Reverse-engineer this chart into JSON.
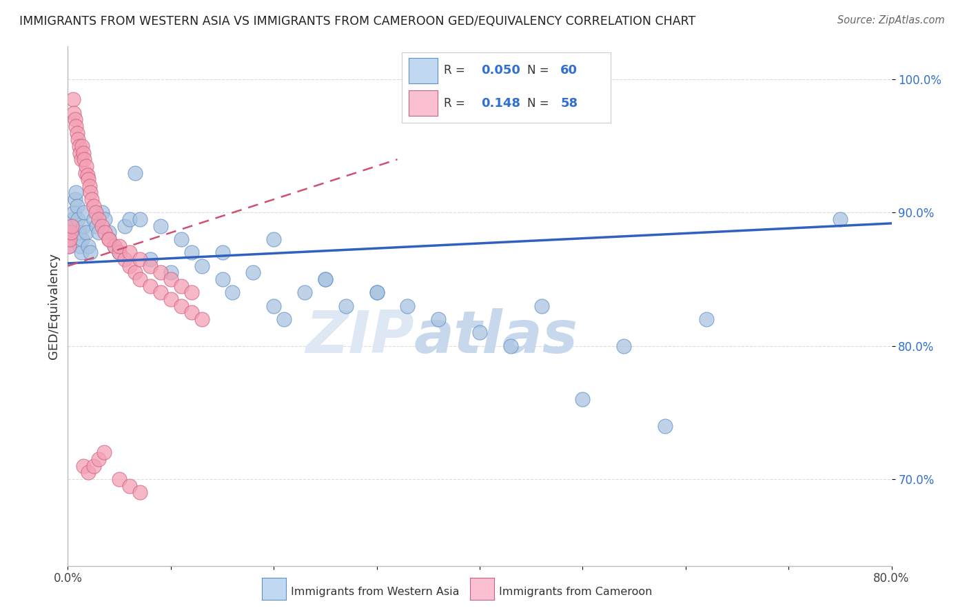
{
  "title": "IMMIGRANTS FROM WESTERN ASIA VS IMMIGRANTS FROM CAMEROON GED/EQUIVALENCY CORRELATION CHART",
  "source": "Source: ZipAtlas.com",
  "xlabel_blue": "Immigrants from Western Asia",
  "xlabel_pink": "Immigrants from Cameroon",
  "ylabel": "GED/Equivalency",
  "R_blue": 0.05,
  "N_blue": 60,
  "R_pink": 0.148,
  "N_pink": 58,
  "color_blue": "#aac4e0",
  "color_pink": "#f4a0b5",
  "edge_blue": "#6090c8",
  "edge_pink": "#d06080",
  "line_blue": "#3060c0",
  "line_pink": "#d05070",
  "xlim": [
    0.0,
    0.8
  ],
  "ylim": [
    0.635,
    1.025
  ],
  "yticks": [
    0.7,
    0.8,
    0.9,
    1.0
  ],
  "xtick_positions": [
    0.0,
    0.1,
    0.2,
    0.3,
    0.4,
    0.5,
    0.6,
    0.7,
    0.8
  ],
  "blue_x": [
    0.001,
    0.002,
    0.003,
    0.004,
    0.005,
    0.006,
    0.007,
    0.008,
    0.009,
    0.01,
    0.011,
    0.012,
    0.013,
    0.014,
    0.015,
    0.016,
    0.018,
    0.02,
    0.022,
    0.025,
    0.028,
    0.03,
    0.033,
    0.036,
    0.04,
    0.045,
    0.05,
    0.055,
    0.06,
    0.065,
    0.07,
    0.08,
    0.09,
    0.1,
    0.11,
    0.12,
    0.13,
    0.15,
    0.16,
    0.18,
    0.2,
    0.21,
    0.23,
    0.25,
    0.27,
    0.3,
    0.33,
    0.36,
    0.4,
    0.43,
    0.46,
    0.5,
    0.54,
    0.58,
    0.62,
    0.15,
    0.2,
    0.25,
    0.3,
    0.75
  ],
  "blue_y": [
    0.875,
    0.88,
    0.885,
    0.89,
    0.895,
    0.9,
    0.91,
    0.915,
    0.905,
    0.895,
    0.885,
    0.875,
    0.87,
    0.88,
    0.89,
    0.9,
    0.885,
    0.875,
    0.87,
    0.895,
    0.89,
    0.885,
    0.9,
    0.895,
    0.885,
    0.875,
    0.87,
    0.89,
    0.895,
    0.93,
    0.895,
    0.865,
    0.89,
    0.855,
    0.88,
    0.87,
    0.86,
    0.85,
    0.84,
    0.855,
    0.83,
    0.82,
    0.84,
    0.85,
    0.83,
    0.84,
    0.83,
    0.82,
    0.81,
    0.8,
    0.83,
    0.76,
    0.8,
    0.74,
    0.82,
    0.87,
    0.88,
    0.85,
    0.84,
    0.895
  ],
  "pink_x": [
    0.001,
    0.002,
    0.003,
    0.004,
    0.005,
    0.006,
    0.007,
    0.008,
    0.009,
    0.01,
    0.011,
    0.012,
    0.013,
    0.014,
    0.015,
    0.016,
    0.017,
    0.018,
    0.019,
    0.02,
    0.021,
    0.022,
    0.023,
    0.025,
    0.027,
    0.03,
    0.033,
    0.036,
    0.04,
    0.045,
    0.05,
    0.055,
    0.06,
    0.065,
    0.07,
    0.08,
    0.09,
    0.1,
    0.11,
    0.12,
    0.13,
    0.04,
    0.05,
    0.06,
    0.07,
    0.08,
    0.09,
    0.1,
    0.11,
    0.12,
    0.015,
    0.02,
    0.025,
    0.03,
    0.035,
    0.05,
    0.06,
    0.07
  ],
  "pink_y": [
    0.875,
    0.88,
    0.885,
    0.89,
    0.985,
    0.975,
    0.97,
    0.965,
    0.96,
    0.955,
    0.95,
    0.945,
    0.94,
    0.95,
    0.945,
    0.94,
    0.93,
    0.935,
    0.928,
    0.925,
    0.92,
    0.915,
    0.91,
    0.905,
    0.9,
    0.895,
    0.89,
    0.885,
    0.88,
    0.875,
    0.87,
    0.865,
    0.86,
    0.855,
    0.85,
    0.845,
    0.84,
    0.835,
    0.83,
    0.825,
    0.82,
    0.88,
    0.875,
    0.87,
    0.865,
    0.86,
    0.855,
    0.85,
    0.845,
    0.84,
    0.71,
    0.705,
    0.71,
    0.715,
    0.72,
    0.7,
    0.695,
    0.69
  ],
  "watermark_zip": "ZIP",
  "watermark_atlas": "atlas",
  "legend_box_color_blue": "#c0d8f0",
  "legend_box_color_pink": "#f8c0d0",
  "legend_text_color": "#3070d0",
  "legend_label_color": "#333333",
  "blue_trend_x0": 0.0,
  "blue_trend_y0": 0.862,
  "blue_trend_x1": 0.8,
  "blue_trend_y1": 0.892,
  "pink_trend_x0": 0.0,
  "pink_trend_y0": 0.86,
  "pink_trend_x1": 0.32,
  "pink_trend_y1": 0.94
}
